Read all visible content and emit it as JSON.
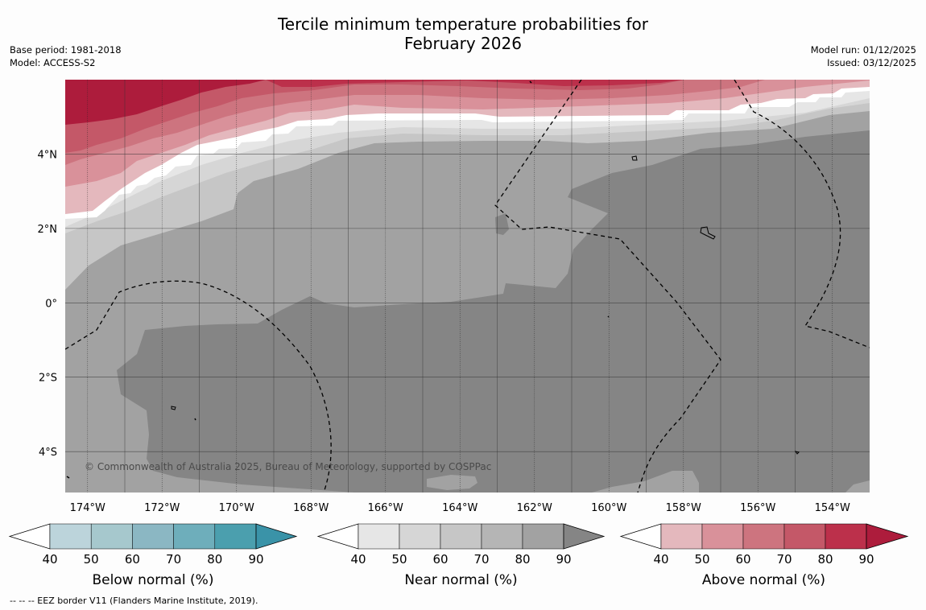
{
  "header": {
    "title_line1": "Tercile minimum temperature probabilities for",
    "title_line2": "February 2026",
    "base_period": "Base period: 1981-2018",
    "model": "Model: ACCESS-S2",
    "model_run": "Model run: 01/12/2025",
    "issued": "Issued: 03/12/2025"
  },
  "map": {
    "copyright": "© Commonwealth of Australia 2025, Bureau of Meteorology, supported by COSPPac",
    "lat_labels": [
      "4°N",
      "2°N",
      "0°",
      "2°S",
      "4°S"
    ],
    "lon_labels": [
      "174°W",
      "172°W",
      "170°W",
      "168°W",
      "166°W",
      "164°W",
      "162°W",
      "160°W",
      "158°W",
      "156°W",
      "154°W"
    ],
    "lat_values": [
      4,
      2,
      0,
      -2,
      -4
    ],
    "lon_values": [
      -174,
      -172,
      -170,
      -168,
      -166,
      -164,
      -162,
      -160,
      -158,
      -156,
      -154
    ],
    "extent": {
      "lon_min": -174.6,
      "lon_max": -153.0,
      "lat_min": -5.1,
      "lat_max": 6.0
    }
  },
  "colorbars": [
    {
      "title": "Below normal (%)",
      "ticks": [
        "40",
        "50",
        "60",
        "70",
        "80",
        "90"
      ],
      "colors": [
        "#ffffff",
        "#bcd4db",
        "#a6c8cd",
        "#8bb7c3",
        "#6eaebb",
        "#4b9fae",
        "#3a93a8"
      ]
    },
    {
      "title": "Near normal (%)",
      "ticks": [
        "40",
        "50",
        "60",
        "70",
        "80",
        "90"
      ],
      "colors": [
        "#ffffff",
        "#e6e6e6",
        "#d6d6d6",
        "#c6c6c6",
        "#b5b5b5",
        "#a2a2a2",
        "#858585"
      ]
    },
    {
      "title": "Above normal (%)",
      "ticks": [
        "40",
        "50",
        "60",
        "70",
        "80",
        "90"
      ],
      "colors": [
        "#ffffff",
        "#e4b8bd",
        "#d9919a",
        "#cd747f",
        "#c45868",
        "#bc304b",
        "#ad1c3c"
      ]
    }
  ],
  "footnote": "--  --  -- EEZ border V11 (Flanders Marine Institute, 2019)."
}
